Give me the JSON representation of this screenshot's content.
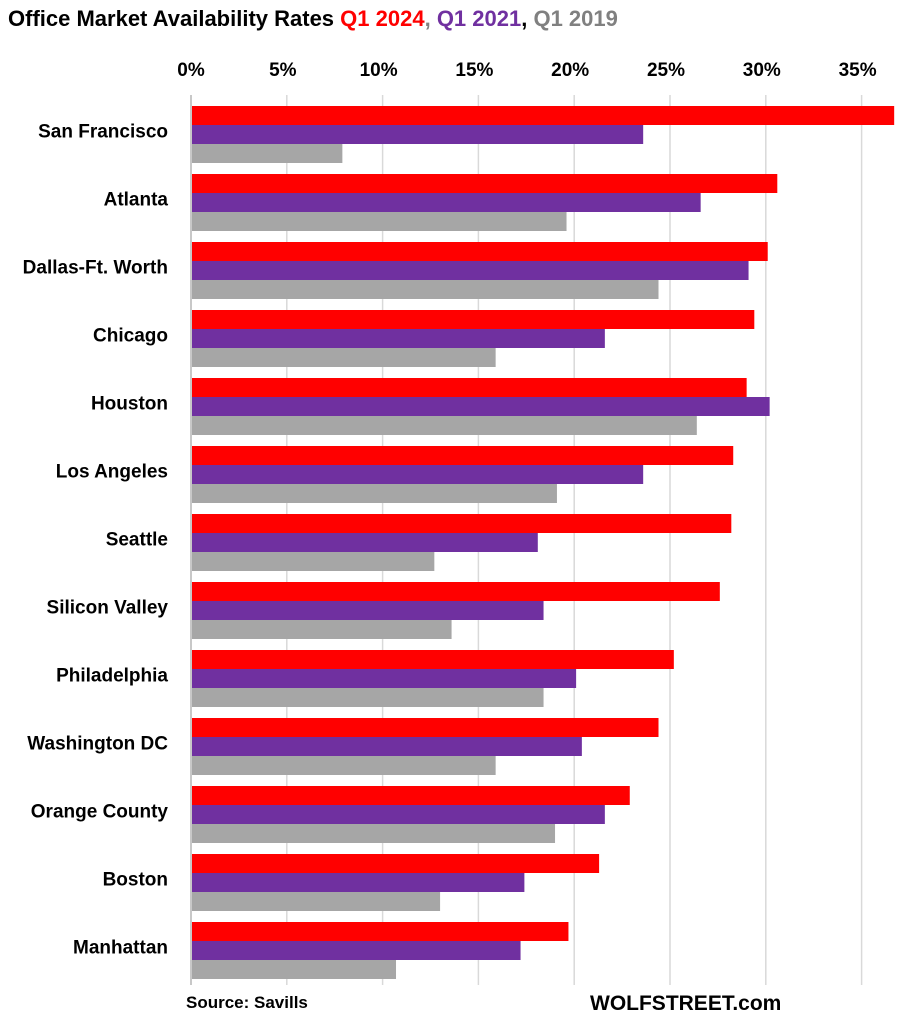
{
  "chart_data": {
    "type": "bar",
    "orientation": "horizontal",
    "title": {
      "prefix": "Office Market Availability Rates ",
      "parts": [
        {
          "text": "Q1 2024",
          "color": "#ff0000"
        },
        {
          "text": ", ",
          "color": "#808080"
        },
        {
          "text": "Q1 2021",
          "color": "#7030a0"
        },
        {
          "text": ", ",
          "color": "#000000"
        },
        {
          "text": "Q1 2019",
          "color": "#808080"
        }
      ]
    },
    "xlabel": "",
    "ylabel": "",
    "xlim": [
      0,
      35
    ],
    "x_ticks": [
      "0%",
      "5%",
      "10%",
      "15%",
      "20%",
      "25%",
      "30%",
      "35%"
    ],
    "x_tick_values": [
      0,
      5,
      10,
      15,
      20,
      25,
      30,
      35
    ],
    "x_axis_position": "top",
    "grid": true,
    "legend": "in-title",
    "categories": [
      "San Francisco",
      "Atlanta",
      "Dallas-Ft. Worth",
      "Chicago",
      "Houston",
      "Los Angeles",
      "Seattle",
      "Silicon Valley",
      "Philadelphia",
      "Washington DC",
      "Orange County",
      "Boston",
      "Manhattan"
    ],
    "series": [
      {
        "name": "Q1 2024",
        "color": "#ff0000",
        "values": [
          36.7,
          30.6,
          30.1,
          29.4,
          29.0,
          28.3,
          28.2,
          27.6,
          25.2,
          24.4,
          22.9,
          21.3,
          19.7
        ]
      },
      {
        "name": "Q1 2021",
        "color": "#7030a0",
        "values": [
          23.6,
          26.6,
          29.1,
          21.6,
          30.2,
          23.6,
          18.1,
          18.4,
          20.1,
          20.4,
          21.6,
          17.4,
          17.2
        ]
      },
      {
        "name": "Q1 2019",
        "color": "#a6a6a6",
        "values": [
          7.9,
          19.6,
          24.4,
          15.9,
          26.4,
          19.1,
          12.7,
          13.6,
          18.4,
          15.9,
          19.0,
          13.0,
          10.7
        ]
      }
    ],
    "source": "Source: Savills",
    "watermark": "WOLFSTREET.com"
  }
}
